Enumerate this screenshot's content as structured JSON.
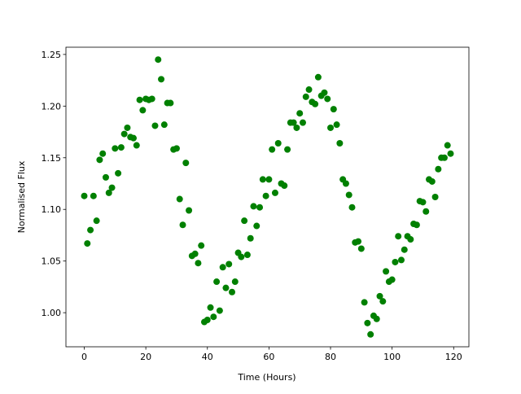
{
  "chart_data": {
    "type": "scatter",
    "x_label": "Time (Hours)",
    "y_label": "Normalised Flux",
    "color": "#008000",
    "x": [
      0,
      1,
      2,
      3,
      4,
      5,
      6,
      7,
      8,
      9,
      10,
      11,
      12,
      13,
      14,
      15,
      16,
      17,
      18,
      19,
      20,
      21,
      22,
      23,
      24,
      25,
      26,
      27,
      28,
      29,
      30,
      31,
      32,
      33,
      34,
      35,
      36,
      37,
      38,
      39,
      40,
      41,
      42,
      43,
      44,
      45,
      46,
      47,
      48,
      49,
      50,
      51,
      52,
      53,
      54,
      55,
      56,
      57,
      58,
      59,
      60,
      61,
      62,
      63,
      64,
      65,
      66,
      67,
      68,
      69,
      70,
      71,
      72,
      73,
      74,
      75,
      76,
      77,
      78,
      79,
      80,
      81,
      82,
      83,
      84,
      85,
      86,
      87,
      88,
      89,
      90,
      91,
      92,
      93,
      94,
      95,
      96,
      97,
      98,
      99,
      100,
      101,
      102,
      103,
      104,
      105,
      106,
      107,
      108,
      109,
      110,
      111,
      112,
      113,
      114,
      115,
      116,
      117,
      118,
      119
    ],
    "values": [
      1.113,
      1.067,
      1.08,
      1.113,
      1.089,
      1.148,
      1.154,
      1.131,
      1.116,
      1.121,
      1.159,
      1.135,
      1.16,
      1.173,
      1.179,
      1.17,
      1.169,
      1.162,
      1.206,
      1.196,
      1.207,
      1.206,
      1.207,
      1.181,
      1.245,
      1.226,
      1.182,
      1.203,
      1.203,
      1.158,
      1.159,
      1.11,
      1.085,
      1.145,
      1.099,
      1.055,
      1.057,
      1.048,
      1.065,
      0.991,
      0.993,
      1.005,
      0.996,
      1.03,
      1.002,
      1.044,
      1.024,
      1.047,
      1.02,
      1.03,
      1.058,
      1.054,
      1.089,
      1.056,
      1.072,
      1.103,
      1.084,
      1.102,
      1.129,
      1.113,
      1.129,
      1.158,
      1.116,
      1.164,
      1.125,
      1.123,
      1.158,
      1.184,
      1.184,
      1.179,
      1.193,
      1.184,
      1.209,
      1.216,
      1.204,
      1.202,
      1.228,
      1.21,
      1.213,
      1.207,
      1.179,
      1.197,
      1.182,
      1.164,
      1.129,
      1.125,
      1.114,
      1.102,
      1.068,
      1.069,
      1.062,
      1.01,
      0.99,
      0.979,
      0.997,
      0.994,
      1.016,
      1.011,
      1.04,
      1.03,
      1.032,
      1.049,
      1.074,
      1.051,
      1.061,
      1.074,
      1.071,
      1.086,
      1.085,
      1.108,
      1.107,
      1.098,
      1.129,
      1.127,
      1.112,
      1.139,
      1.15,
      1.15,
      1.162,
      1.154
    ],
    "xlim": [
      -5.95,
      124.95
    ],
    "ylim": [
      0.967,
      1.257
    ],
    "xticks": [
      0,
      20,
      40,
      60,
      80,
      100,
      120
    ],
    "yticks": [
      {
        "value": 1.0,
        "label": "1.00"
      },
      {
        "value": 1.05,
        "label": "1.05"
      },
      {
        "value": 1.1,
        "label": "1.10"
      },
      {
        "value": 1.15,
        "label": "1.15"
      },
      {
        "value": 1.2,
        "label": "1.20"
      },
      {
        "value": 1.25,
        "label": "1.25"
      }
    ]
  }
}
